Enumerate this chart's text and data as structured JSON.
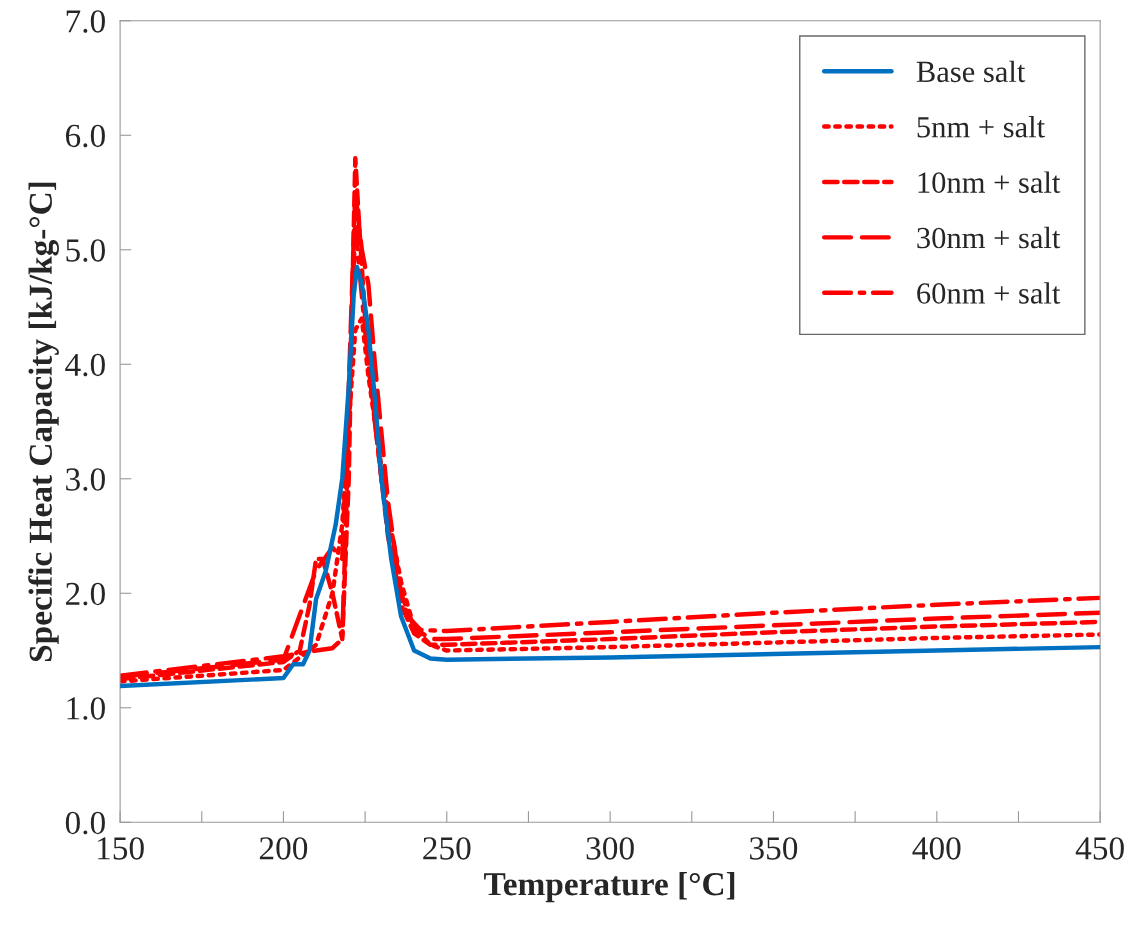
{
  "chart_data": {
    "type": "line",
    "xlabel": "Temperature [°C]",
    "ylabel": "Specific Heat Capacity [kJ/kg-°C]",
    "xlim": [
      150,
      450
    ],
    "ylim": [
      0,
      7
    ],
    "xticks": [
      150,
      {
        "value": 175,
        "label": null
      },
      200,
      {
        "value": 225,
        "label": null
      },
      250,
      {
        "value": 275,
        "label": null
      },
      300,
      {
        "value": 325,
        "label": null
      },
      350,
      {
        "value": 375,
        "label": null
      },
      400,
      {
        "value": 425,
        "label": null
      },
      450
    ],
    "yticks": [
      {
        "value": 0,
        "label": "0.0"
      },
      {
        "value": 1,
        "label": "1.0"
      },
      {
        "value": 2,
        "label": "2.0"
      },
      {
        "value": 3,
        "label": "3.0"
      },
      {
        "value": 4,
        "label": "4.0"
      },
      {
        "value": 5,
        "label": "5.0"
      },
      {
        "value": 6,
        "label": "6.0"
      },
      {
        "value": 7,
        "label": "7.0"
      }
    ],
    "grid": false,
    "legend": "top right",
    "marker": "none",
    "series": [
      {
        "name": "Base salt",
        "color": "#0070c0",
        "line_style": "solid",
        "x": [
          150,
          200,
          203,
          206,
          208,
          210,
          213,
          216,
          218,
          220,
          221.5,
          222.5,
          224,
          226,
          228,
          230,
          233,
          236,
          240,
          245,
          250,
          300,
          350,
          400,
          450
        ],
        "values": [
          1.19,
          1.26,
          1.38,
          1.38,
          1.5,
          1.95,
          2.2,
          2.6,
          3.0,
          3.8,
          4.6,
          4.85,
          4.7,
          4.3,
          3.7,
          3.0,
          2.3,
          1.8,
          1.5,
          1.43,
          1.42,
          1.44,
          1.47,
          1.5,
          1.53
        ]
      },
      {
        "name": "5nm + salt",
        "color": "#ff0000",
        "line_style": "dotted",
        "x": [
          150,
          200,
          210,
          215,
          218,
          220,
          222,
          224,
          226,
          228,
          232,
          236,
          240,
          245,
          250,
          300,
          350,
          400,
          450
        ],
        "values": [
          1.23,
          1.33,
          1.55,
          2.0,
          2.6,
          3.5,
          4.3,
          4.4,
          3.9,
          3.5,
          2.7,
          2.1,
          1.7,
          1.55,
          1.5,
          1.53,
          1.57,
          1.61,
          1.64
        ]
      },
      {
        "name": "10nm + salt",
        "color": "#ff0000",
        "line_style": "dashed",
        "x": [
          150,
          200,
          205,
          208,
          210,
          212,
          215,
          218,
          220,
          221,
          222,
          223,
          225,
          228,
          232,
          236,
          240,
          245,
          250,
          300,
          350,
          400,
          450
        ],
        "values": [
          1.25,
          1.4,
          1.5,
          1.9,
          2.3,
          2.3,
          2.0,
          1.6,
          3.0,
          4.5,
          5.8,
          5.3,
          4.4,
          3.5,
          2.5,
          1.9,
          1.65,
          1.55,
          1.55,
          1.6,
          1.66,
          1.71,
          1.75
        ]
      },
      {
        "name": "30nm + salt",
        "color": "#ff0000",
        "line_style": "long dashed",
        "x": [
          150,
          200,
          210,
          215,
          218,
          220,
          222,
          224,
          226,
          228,
          232,
          236,
          240,
          245,
          250,
          300,
          350,
          400,
          450
        ],
        "values": [
          1.27,
          1.42,
          2.2,
          2.4,
          2.3,
          3.8,
          5.5,
          5.0,
          4.7,
          4.0,
          2.8,
          2.0,
          1.7,
          1.6,
          1.6,
          1.66,
          1.72,
          1.78,
          1.83
        ]
      },
      {
        "name": "60nm + salt",
        "color": "#ff0000",
        "line_style": "dashdot",
        "x": [
          150,
          200,
          210,
          215,
          218,
          219,
          220,
          221,
          222,
          224,
          226,
          230,
          234,
          238,
          242,
          250,
          300,
          350,
          400,
          450
        ],
        "values": [
          1.28,
          1.45,
          1.5,
          1.52,
          1.6,
          2.5,
          3.6,
          4.5,
          5.2,
          4.6,
          4.0,
          3.0,
          2.2,
          1.8,
          1.68,
          1.67,
          1.75,
          1.83,
          1.9,
          1.96
        ]
      }
    ]
  }
}
